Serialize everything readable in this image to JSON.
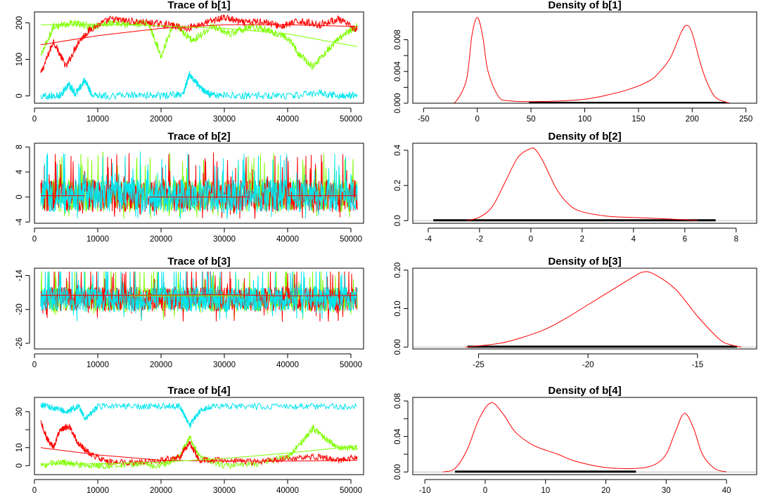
{
  "colors": {
    "chain1": "#ff0000",
    "chain2": "#7fff00",
    "chain3": "#00e5ee",
    "density": "#ff0000",
    "rug": "#000000",
    "baseline": "#bebebe"
  },
  "chart_data": [
    {
      "type": "line",
      "role": "trace",
      "title": "Trace of b[1]",
      "xlim": [
        0,
        52000
      ],
      "ylim": [
        -20,
        230
      ],
      "xticks": [
        0,
        10000,
        20000,
        30000,
        40000,
        50000
      ],
      "xtick_labels": [
        "0",
        "10000",
        "20000",
        "30000",
        "40000",
        "50000"
      ],
      "yticks": [
        0,
        100,
        200
      ],
      "ytick_labels": [
        "0",
        "100",
        "200"
      ],
      "series": [
        {
          "color": "#ff0000",
          "x": [
            1000,
            3000,
            5000,
            7000,
            9000,
            12000,
            15000,
            18000,
            21000,
            24000,
            27000,
            30000,
            33000,
            36000,
            39000,
            42000,
            45000,
            48000,
            51000
          ],
          "y": [
            60,
            150,
            80,
            150,
            185,
            210,
            205,
            200,
            195,
            185,
            200,
            215,
            200,
            205,
            190,
            205,
            195,
            210,
            180
          ]
        },
        {
          "color": "#7fff00",
          "x": [
            1000,
            3000,
            6000,
            9000,
            12000,
            15000,
            18000,
            20000,
            22000,
            25000,
            28000,
            31000,
            34000,
            37000,
            40000,
            42000,
            44000,
            47000,
            49000,
            51000
          ],
          "y": [
            110,
            190,
            200,
            190,
            200,
            195,
            200,
            110,
            200,
            150,
            190,
            170,
            190,
            180,
            160,
            110,
            80,
            140,
            170,
            190
          ]
        },
        {
          "color": "#00e5ee",
          "x": [
            1000,
            4000,
            5500,
            6500,
            8000,
            9000,
            12000,
            16000,
            20000,
            23500,
            24500,
            26000,
            27500,
            30000,
            35000,
            40000,
            45000,
            48000,
            51000
          ],
          "y": [
            0,
            2,
            30,
            5,
            45,
            5,
            0,
            3,
            0,
            5,
            60,
            25,
            5,
            0,
            2,
            0,
            8,
            0,
            2
          ]
        }
      ],
      "trend_lines": [
        {
          "color": "#ff0000",
          "x": [
            1000,
            10000,
            20000,
            30000,
            40000,
            51000
          ],
          "y": [
            140,
            165,
            185,
            195,
            195,
            190
          ]
        },
        {
          "color": "#7fff00",
          "x": [
            1000,
            15000,
            30000,
            40000,
            51000
          ],
          "y": [
            195,
            195,
            185,
            170,
            135
          ]
        }
      ]
    },
    {
      "type": "line",
      "role": "density",
      "title": "Density of b[1]",
      "xlim": [
        -60,
        260
      ],
      "ylim": [
        0,
        0.0115
      ],
      "xticks": [
        -50,
        0,
        50,
        100,
        150,
        200,
        250
      ],
      "xtick_labels": [
        "-50",
        "0",
        "50",
        "100",
        "150",
        "200",
        "250"
      ],
      "yticks": [
        0,
        0.002,
        0.004,
        0.006,
        0.008
      ],
      "ytick_labels": [
        "0.000",
        "",
        "0.004",
        "",
        "0.008"
      ],
      "density": {
        "x": [
          -28,
          -20,
          -10,
          -5,
          0,
          5,
          10,
          20,
          30,
          50,
          80,
          100,
          120,
          140,
          160,
          170,
          180,
          190,
          195,
          200,
          210,
          220,
          230,
          236
        ],
        "y": [
          0,
          0.0002,
          0.003,
          0.0085,
          0.0108,
          0.0085,
          0.004,
          0.0008,
          0.0003,
          0.0002,
          0.0003,
          0.0005,
          0.001,
          0.0017,
          0.0028,
          0.004,
          0.0058,
          0.009,
          0.0098,
          0.0088,
          0.004,
          0.001,
          0.0002,
          0
        ]
      },
      "rug_range": [
        48,
        232
      ]
    },
    {
      "type": "line",
      "role": "trace",
      "title": "Trace of b[2]",
      "xlim": [
        0,
        52000
      ],
      "ylim": [
        -4.2,
        8.6
      ],
      "xticks": [
        0,
        10000,
        20000,
        30000,
        40000,
        50000
      ],
      "xtick_labels": [
        "0",
        "10000",
        "20000",
        "30000",
        "40000",
        "50000"
      ],
      "yticks": [
        -4,
        0,
        4,
        8
      ],
      "ytick_labels": [
        "-4",
        "0",
        "4",
        "8"
      ],
      "noise": {
        "center": 0.2,
        "spread": 2.6,
        "low": -3.8,
        "high": 8.3
      },
      "trend_lines": [
        {
          "color": "#ff0000",
          "x": [
            1000,
            8000
          ],
          "y": [
            0.2,
            0.2
          ]
        },
        {
          "color": "#ff0000",
          "x": [
            18000,
            34000
          ],
          "y": [
            0.0,
            0.0
          ]
        },
        {
          "color": "#ff0000",
          "x": [
            40000,
            51000
          ],
          "y": [
            0.2,
            0.2
          ]
        }
      ]
    },
    {
      "type": "line",
      "role": "density",
      "title": "Density of b[2]",
      "xlim": [
        -4.6,
        8.8
      ],
      "ylim": [
        -0.015,
        0.44
      ],
      "xticks": [
        -4,
        -2,
        0,
        2,
        4,
        6,
        8
      ],
      "xtick_labels": [
        "-4",
        "-2",
        "0",
        "2",
        "4",
        "6",
        "8"
      ],
      "yticks": [
        0,
        0.2,
        0.4
      ],
      "ytick_labels": [
        "0.0",
        "0.2",
        "0.4"
      ],
      "density": {
        "x": [
          -2.5,
          -2,
          -1.5,
          -1,
          -0.5,
          0,
          0.2,
          0.5,
          1,
          1.5,
          2,
          3,
          4,
          5,
          6,
          6.5
        ],
        "y": [
          0,
          0.02,
          0.08,
          0.22,
          0.36,
          0.41,
          0.4,
          0.33,
          0.18,
          0.09,
          0.05,
          0.025,
          0.018,
          0.012,
          0.005,
          0
        ]
      },
      "rug_range": [
        -3.8,
        7.2
      ]
    },
    {
      "type": "line",
      "role": "trace",
      "title": "Trace of b[3]",
      "xlim": [
        0,
        52000
      ],
      "ylim": [
        -27,
        -12.7
      ],
      "xticks": [
        0,
        10000,
        20000,
        30000,
        40000,
        50000
      ],
      "xtick_labels": [
        "0",
        "10000",
        "20000",
        "30000",
        "40000",
        "50000"
      ],
      "yticks": [
        -26,
        -20,
        -14
      ],
      "ytick_labels": [
        "-26",
        "-20",
        "-14"
      ],
      "noise": {
        "center": -18.2,
        "spread": 2.2,
        "low": -26.2,
        "high": -13.3
      },
      "trend_lines": [
        {
          "color": "#ff0000",
          "x": [
            1000,
            15000,
            30000,
            40000,
            51000
          ],
          "y": [
            -17.5,
            -17.5,
            -17.4,
            -17.6,
            -17.5
          ]
        },
        {
          "color": "#7fff00",
          "x": [
            15000,
            33000
          ],
          "y": [
            -17.6,
            -17.6
          ]
        }
      ]
    },
    {
      "type": "line",
      "role": "density",
      "title": "Density of b[3]",
      "xlim": [
        -28,
        -12.3
      ],
      "ylim": [
        -0.005,
        0.205
      ],
      "xticks": [
        -25,
        -20,
        -15
      ],
      "xtick_labels": [
        "-25",
        "-20",
        "-15"
      ],
      "yticks": [
        0,
        0.1,
        0.2
      ],
      "ytick_labels": [
        "0.00",
        "0.10",
        "0.20"
      ],
      "density": {
        "x": [
          -25.6,
          -25,
          -24,
          -23,
          -22,
          -21,
          -20,
          -19,
          -18,
          -17.5,
          -17,
          -16,
          -15,
          -14,
          -13.5,
          -13
        ],
        "y": [
          0,
          0.003,
          0.01,
          0.025,
          0.045,
          0.075,
          0.11,
          0.145,
          0.18,
          0.195,
          0.19,
          0.15,
          0.08,
          0.02,
          0.006,
          0
        ]
      },
      "rug_range": [
        -25.5,
        -13.2
      ]
    },
    {
      "type": "line",
      "role": "trace",
      "title": "Trace of b[4]",
      "xlim": [
        0,
        52000
      ],
      "ylim": [
        -5,
        38
      ],
      "xticks": [
        0,
        10000,
        20000,
        30000,
        40000,
        50000
      ],
      "xtick_labels": [
        "0",
        "10000",
        "20000",
        "30000",
        "40000",
        "50000"
      ],
      "yticks": [
        0,
        10,
        20,
        30
      ],
      "ytick_labels": [
        "0",
        "10",
        "",
        "30"
      ],
      "series": [
        {
          "color": "#ff0000",
          "x": [
            1000,
            2000,
            3000,
            4000,
            5500,
            7000,
            9000,
            12000,
            16000,
            20000,
            23000,
            24500,
            26000,
            30000,
            35000,
            40000,
            45000,
            48000,
            51000
          ],
          "y": [
            24,
            15,
            10,
            20,
            22,
            12,
            6,
            2,
            2,
            3,
            5,
            13,
            3,
            3,
            2,
            4,
            5,
            3,
            5
          ]
        },
        {
          "color": "#7fff00",
          "x": [
            1000,
            4000,
            6000,
            9000,
            12000,
            16000,
            20000,
            23000,
            24500,
            26000,
            30000,
            35000,
            40000,
            42000,
            44000,
            46000,
            48000,
            51000
          ],
          "y": [
            0,
            2,
            1,
            0,
            0,
            1,
            0,
            5,
            16,
            5,
            0,
            1,
            5,
            12,
            21,
            15,
            10,
            10
          ]
        },
        {
          "color": "#00e5ee",
          "x": [
            1000,
            3000,
            5000,
            7000,
            8000,
            10000,
            15000,
            20000,
            23000,
            24500,
            26000,
            28000,
            33000,
            40000,
            45000,
            51000
          ],
          "y": [
            34,
            32,
            30,
            33,
            26,
            33,
            33,
            33,
            33,
            22,
            30,
            33,
            33,
            33,
            33,
            33
          ]
        }
      ],
      "trend_lines": [
        {
          "color": "#ff0000",
          "x": [
            1000,
            10000,
            20000,
            30000,
            40000,
            51000
          ],
          "y": [
            10,
            6,
            3,
            2.5,
            2.5,
            3
          ]
        },
        {
          "color": "#7fff00",
          "x": [
            1000,
            10000,
            20000,
            30000,
            40000,
            51000
          ],
          "y": [
            1,
            1,
            2,
            4,
            7,
            11
          ]
        }
      ]
    },
    {
      "type": "line",
      "role": "density",
      "title": "Density of b[4]",
      "xlim": [
        -12,
        45
      ],
      "ylim": [
        -0.003,
        0.084
      ],
      "xticks": [
        -10,
        0,
        10,
        20,
        30,
        40
      ],
      "xtick_labels": [
        "-10",
        "0",
        "10",
        "20",
        "30",
        "40"
      ],
      "yticks": [
        0,
        0.02,
        0.04,
        0.06,
        0.08
      ],
      "ytick_labels": [
        "0.00",
        "",
        "0.04",
        "",
        "0.08"
      ],
      "density": {
        "x": [
          -7,
          -5,
          -3,
          -1,
          1,
          3,
          5,
          8,
          12,
          15,
          20,
          25,
          28,
          30,
          31.5,
          33,
          34.5,
          36,
          38,
          40
        ],
        "y": [
          0,
          0.004,
          0.025,
          0.06,
          0.078,
          0.065,
          0.045,
          0.03,
          0.02,
          0.012,
          0.005,
          0.004,
          0.008,
          0.02,
          0.045,
          0.066,
          0.05,
          0.02,
          0.004,
          0
        ]
      },
      "rug_range": [
        -5,
        25
      ]
    }
  ]
}
